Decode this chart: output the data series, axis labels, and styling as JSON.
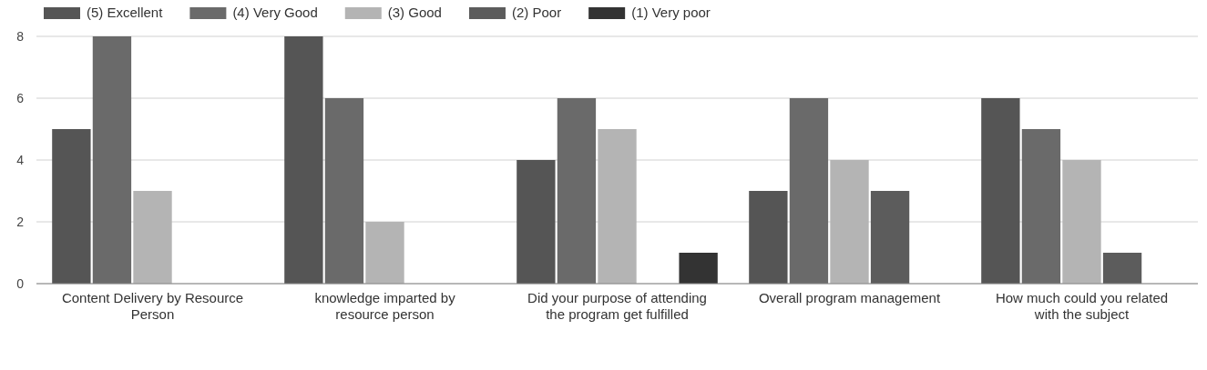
{
  "chart_data": {
    "type": "bar",
    "categories": [
      "Content Delivery by Resource Person",
      "knowledge imparted by resource person",
      "Did your purpose of attending the program get fulfilled",
      "Overall program management",
      "How much could you related with the subject"
    ],
    "series": [
      {
        "name": "(5) Excellent",
        "color": "#555555",
        "values": [
          5,
          8,
          4,
          3,
          6
        ]
      },
      {
        "name": "(4) Very Good",
        "color": "#6a6a6a",
        "values": [
          8,
          6,
          6,
          6,
          5
        ]
      },
      {
        "name": "(3) Good",
        "color": "#b4b4b4",
        "values": [
          3,
          2,
          5,
          4,
          4
        ]
      },
      {
        "name": "(2) Poor",
        "color": "#5c5c5c",
        "values": [
          0,
          0,
          0,
          3,
          1
        ]
      },
      {
        "name": "(1) Very poor",
        "color": "#333333",
        "values": [
          0,
          0,
          1,
          0,
          0
        ]
      }
    ],
    "ylim": [
      0,
      8
    ],
    "yticks": [
      0,
      2,
      4,
      6,
      8
    ],
    "grid": "y",
    "legend": "top left"
  }
}
